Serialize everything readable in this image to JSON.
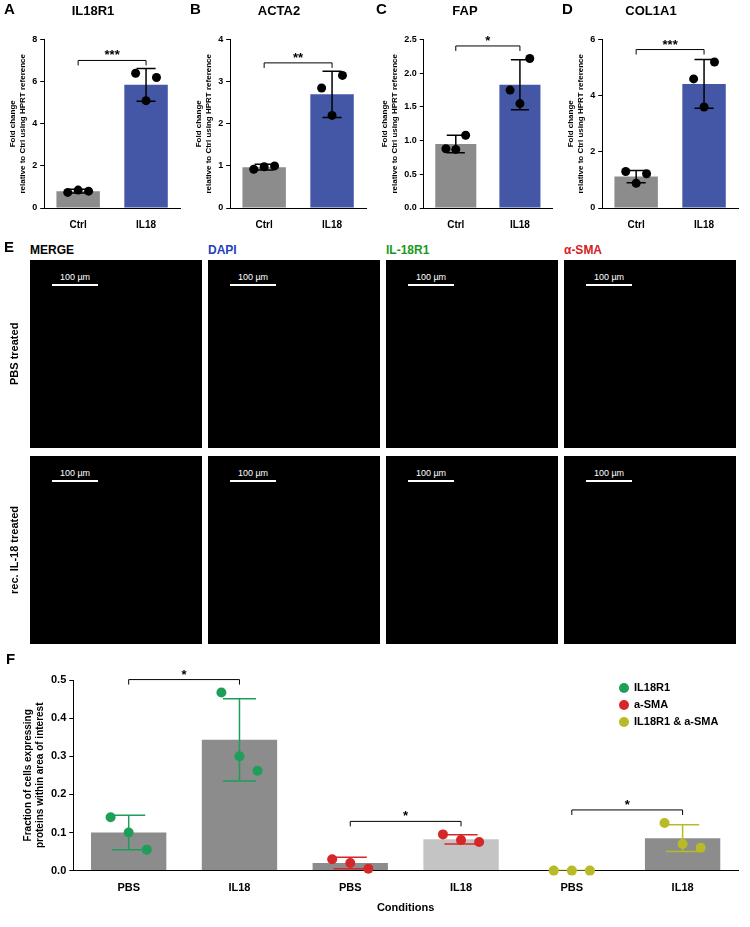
{
  "chart_data": [
    {
      "panel": "A",
      "type": "bar",
      "title": "IL18R1",
      "ylabel": [
        "Fold change",
        "relative to Ctrl using HPRT reference"
      ],
      "categories": [
        "Ctrl",
        "IL18"
      ],
      "values": [
        0.8,
        5.85
      ],
      "errors": [
        0.09,
        0.78
      ],
      "points": [
        [
          0.74,
          0.85,
          0.8
        ],
        [
          6.4,
          5.1,
          6.2
        ]
      ],
      "colors": [
        "#8c8c8c",
        "#4456a6"
      ],
      "annotation": "***",
      "ylim": [
        0,
        8
      ],
      "yticks": [
        0,
        2,
        4,
        6,
        8
      ],
      "grid": false,
      "marker": "circle"
    },
    {
      "panel": "B",
      "type": "bar",
      "title": "ACTA2",
      "ylabel": [
        "Fold change",
        "relative to Ctrl using HPRT reference"
      ],
      "categories": [
        "Ctrl",
        "IL18"
      ],
      "values": [
        0.97,
        2.7
      ],
      "errors": [
        0.07,
        0.55
      ],
      "points": [
        [
          0.92,
          0.98,
          1.0
        ],
        [
          2.85,
          2.2,
          3.15
        ]
      ],
      "colors": [
        "#8c8c8c",
        "#4456a6"
      ],
      "annotation": "**",
      "ylim": [
        0,
        4
      ],
      "yticks": [
        0,
        1,
        2,
        3,
        4
      ],
      "grid": false,
      "marker": "circle"
    },
    {
      "panel": "C",
      "type": "bar",
      "title": "FAP",
      "ylabel": [
        "Fold change",
        "relative to Ctrl using HPRT reference"
      ],
      "categories": [
        "Ctrl",
        "IL18"
      ],
      "values": [
        0.95,
        1.83
      ],
      "errors": [
        0.13,
        0.37
      ],
      "points": [
        [
          0.88,
          0.87,
          1.08
        ],
        [
          1.75,
          1.55,
          2.22
        ]
      ],
      "colors": [
        "#8c8c8c",
        "#4456a6"
      ],
      "annotation": "*",
      "ylim": [
        0,
        2.5
      ],
      "yticks": [
        {
          "value": 0,
          "label": "0.0"
        },
        {
          "value": 0.5,
          "label": "0.5"
        },
        {
          "value": 1,
          "label": "1.0"
        },
        {
          "value": 1.5,
          "label": "1.5"
        },
        {
          "value": 2,
          "label": "2.0"
        },
        {
          "value": 2.5,
          "label": "2.5"
        }
      ],
      "grid": false,
      "marker": "circle"
    },
    {
      "panel": "D",
      "type": "bar",
      "title": "COL1A1",
      "ylabel": [
        "Fold change",
        "relative to Ctrl using HPRT reference"
      ],
      "categories": [
        "Ctrl",
        "IL18"
      ],
      "values": [
        1.12,
        4.42
      ],
      "errors": [
        0.22,
        0.87
      ],
      "points": [
        [
          1.3,
          0.88,
          1.22
        ],
        [
          4.6,
          3.6,
          5.2
        ]
      ],
      "colors": [
        "#8c8c8c",
        "#4456a6"
      ],
      "annotation": "***",
      "ylim": [
        0,
        6
      ],
      "yticks": [
        0,
        2,
        4,
        6
      ],
      "grid": false,
      "marker": "circle"
    },
    {
      "panel": "F",
      "type": "bar",
      "ylabel": [
        "Fraction of cells expressing",
        "proteins within area of interest"
      ],
      "xlabel": "Conditions",
      "categories": [
        "PBS",
        "IL18",
        "PBS",
        "IL18",
        "PBS",
        "IL18"
      ],
      "colors": [
        "#8c8c8c",
        "#8c8c8c",
        "#8c8c8c",
        "#c4c4c4",
        "#8c8c8c",
        "#8c8c8c"
      ],
      "series": [
        {
          "name": "IL18R1",
          "color": "#1f9e5a",
          "values": [
            0.1,
            0.343,
            null,
            null,
            null,
            null
          ],
          "errors": [
            0.045,
            0.108,
            null,
            null,
            null,
            null
          ],
          "points": [
            [
              0.14,
              0.1,
              0.055
            ],
            [
              0.467,
              0.3,
              0.262
            ],
            null,
            null,
            null,
            null
          ],
          "annotation": "*"
        },
        {
          "name": "a-SMA",
          "color": "#d62728",
          "values": [
            null,
            null,
            0.02,
            0.082,
            null,
            null
          ],
          "errors": [
            null,
            null,
            0.015,
            0.012,
            null,
            null
          ],
          "points": [
            null,
            null,
            [
              0.03,
              0.02,
              0.005
            ],
            [
              0.095,
              0.08,
              0.075
            ],
            null,
            null
          ],
          "annotation": "*"
        },
        {
          "name": "IL18R1 & a-SMA",
          "color": "#b8bb26",
          "values": [
            null,
            null,
            null,
            null,
            0,
            0.085
          ],
          "errors": [
            null,
            null,
            null,
            null,
            0,
            0.035
          ],
          "points": [
            null,
            null,
            null,
            null,
            [
              0,
              0,
              0
            ],
            [
              0.125,
              0.07,
              0.06
            ]
          ],
          "annotation": "*"
        }
      ],
      "ylim": [
        0,
        0.5
      ],
      "yticks": [
        {
          "value": 0,
          "label": "0.0"
        },
        {
          "value": 0.1,
          "label": "0.1"
        },
        {
          "value": 0.2,
          "label": "0.2"
        },
        {
          "value": 0.3,
          "label": "0.3"
        },
        {
          "value": 0.4,
          "label": "0.4"
        },
        {
          "value": 0.5,
          "label": "0.5"
        }
      ],
      "legend": "upper right",
      "grid": false,
      "marker": "circle"
    }
  ],
  "image_panel": {
    "panel": "E",
    "columns": [
      "MERGE",
      "DAPI",
      "IL-18R1",
      "α-SMA"
    ],
    "colors": [
      "#000000",
      "#1f3fbf",
      "#1a9a1a",
      "#d42020"
    ],
    "rows": [
      "PBS treated",
      "rec. IL-18 treated"
    ],
    "scale_bar": "100 µm"
  }
}
